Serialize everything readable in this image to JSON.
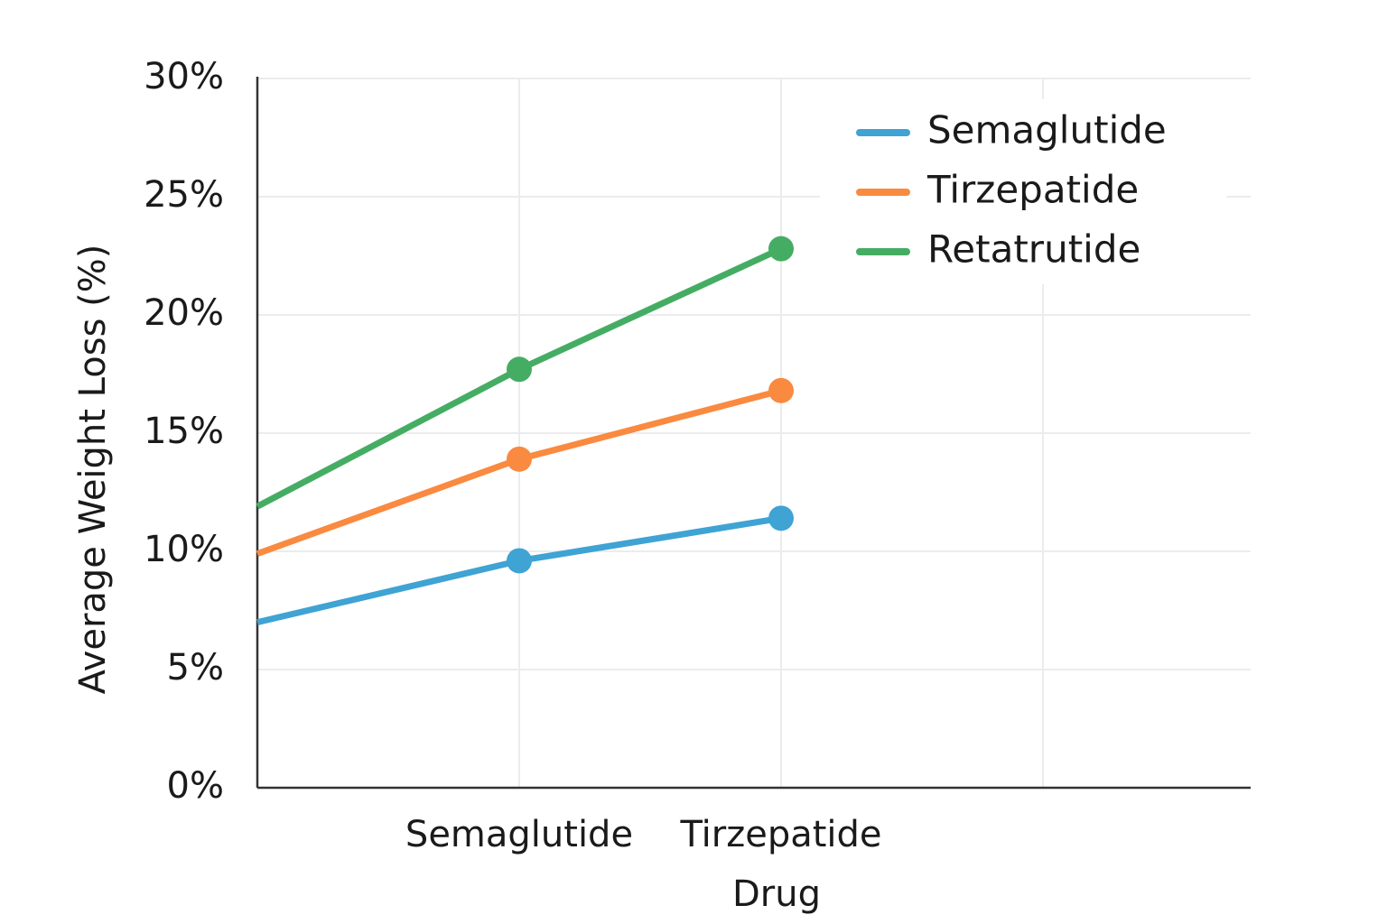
{
  "chart_data": {
    "type": "line",
    "x_label": "Drug",
    "y_label": "Average Weight Loss (%)",
    "categories": [
      null,
      "Semaglutide",
      "Tirzepatide",
      null
    ],
    "series": [
      {
        "name": "Semaglutide",
        "color": "#3fa3d4",
        "values": [
          7.0,
          9.6,
          11.4,
          null
        ]
      },
      {
        "name": "Tirzepatide",
        "color": "#f98a40",
        "values": [
          9.9,
          13.9,
          16.8,
          null
        ]
      },
      {
        "name": "Retatrutide",
        "color": "#45ad63",
        "values": [
          11.9,
          17.7,
          22.8,
          null
        ]
      }
    ],
    "ylim": [
      0,
      30
    ],
    "yticks": [
      {
        "value": 0,
        "label": "0%"
      },
      {
        "value": 5,
        "label": "5%"
      },
      {
        "value": 10,
        "label": "10%"
      },
      {
        "value": 15,
        "label": "15%"
      },
      {
        "value": 20,
        "label": "20%"
      },
      {
        "value": 25,
        "label": "25%"
      },
      {
        "value": 30,
        "label": "30%"
      }
    ],
    "grid": true,
    "legend": "upper right"
  }
}
